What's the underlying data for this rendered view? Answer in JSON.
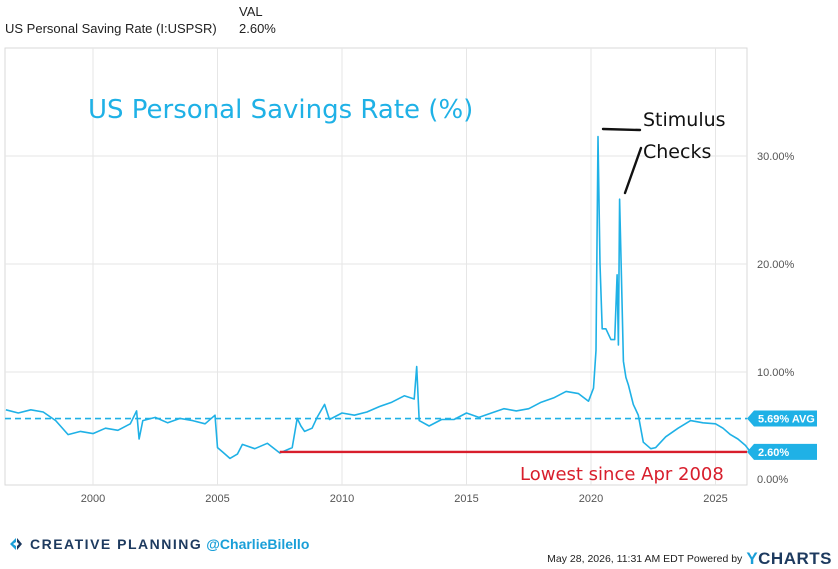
{
  "legend": {
    "series_label": "US Personal Saving Rate (I:USPSR)",
    "column_header": "VAL",
    "value": "2.60%"
  },
  "footer": {
    "brand": "CREATIVE PLANNING",
    "handle": "@CharlieBilello",
    "timestamp": "May 28, 2026, 11:31 AM EDT Powered by",
    "provider_y": "Y",
    "provider_rest": "CHARTS"
  },
  "colors": {
    "series": "#1fb1e6",
    "red_line": "#d81e2c",
    "grid": "#e6e6e6",
    "brand_navy": "#1d3a5f"
  },
  "chart_data": {
    "type": "line",
    "title": "US Personal Savings Rate (%)",
    "xlabel": "",
    "ylabel": "",
    "x_ticks": [
      "2000",
      "2005",
      "2010",
      "2015",
      "2020",
      "2025"
    ],
    "y_ticks": [
      "0.00%",
      "10.00%",
      "20.00%",
      "30.00%"
    ],
    "ylim": [
      0,
      34
    ],
    "xlim": [
      1996.5,
      2026.5
    ],
    "grid": true,
    "series": [
      {
        "x": [
          1996.5,
          1997,
          1997.5,
          1998,
          1998.5,
          1999,
          1999.5,
          2000,
          2000.5,
          2001,
          2001.5,
          2001.75,
          2001.85,
          2002,
          2002.5,
          2003,
          2003.5,
          2004,
          2004.5,
          2004.9,
          2005,
          2005.2,
          2005.5,
          2005.8,
          2006,
          2006.5,
          2007,
          2007.5,
          2008,
          2008.2,
          2008.35,
          2008.5,
          2008.8,
          2009,
          2009.3,
          2009.5,
          2010,
          2010.5,
          2011,
          2011.5,
          2012,
          2012.5,
          2012.9,
          2013,
          2013.1,
          2013.5,
          2014,
          2014.5,
          2015,
          2015.5,
          2016,
          2016.5,
          2017,
          2017.5,
          2018,
          2018.5,
          2019,
          2019.5,
          2019.9,
          2020.1,
          2020.2,
          2020.28,
          2020.36,
          2020.45,
          2020.6,
          2020.8,
          2020.95,
          2021.05,
          2021.1,
          2021.15,
          2021.22,
          2021.3,
          2021.4,
          2021.5,
          2021.7,
          2021.9,
          2022.1,
          2022.4,
          2022.6,
          2023,
          2023.5,
          2024,
          2024.5,
          2025,
          2025.3,
          2025.6,
          2025.9,
          2026.2,
          2026.4
        ],
        "values": [
          6.5,
          6.2,
          6.5,
          6.3,
          5.5,
          4.2,
          4.5,
          4.3,
          4.8,
          4.6,
          5.2,
          6.4,
          3.8,
          5.5,
          5.8,
          5.3,
          5.7,
          5.5,
          5.2,
          6.0,
          3.0,
          2.6,
          2.0,
          2.4,
          3.3,
          2.9,
          3.4,
          2.5,
          3.0,
          5.7,
          5.0,
          4.5,
          4.8,
          5.8,
          7.0,
          5.6,
          6.2,
          6.0,
          6.3,
          6.8,
          7.2,
          7.8,
          7.5,
          10.5,
          5.5,
          5.0,
          5.6,
          5.6,
          6.2,
          5.8,
          6.2,
          6.6,
          6.4,
          6.6,
          7.2,
          7.6,
          8.2,
          8.0,
          7.3,
          8.5,
          12.0,
          31.8,
          20.0,
          14.0,
          14.0,
          13.0,
          13.0,
          19.0,
          12.5,
          26.0,
          19.0,
          11.0,
          9.5,
          8.8,
          7.0,
          6.0,
          3.5,
          2.9,
          3.0,
          4.0,
          4.8,
          5.5,
          5.3,
          5.2,
          4.8,
          4.2,
          3.8,
          3.2,
          2.6
        ]
      }
    ],
    "annotations": {
      "stimulus": "Stimulus",
      "checks": "Checks",
      "lowest": "Lowest since Apr 2008",
      "avg_label": "5.69% AVG",
      "avg_value": 5.69,
      "current_label": "2.60%",
      "current_value": 2.6,
      "red_line_start_x": 2007.5
    }
  }
}
